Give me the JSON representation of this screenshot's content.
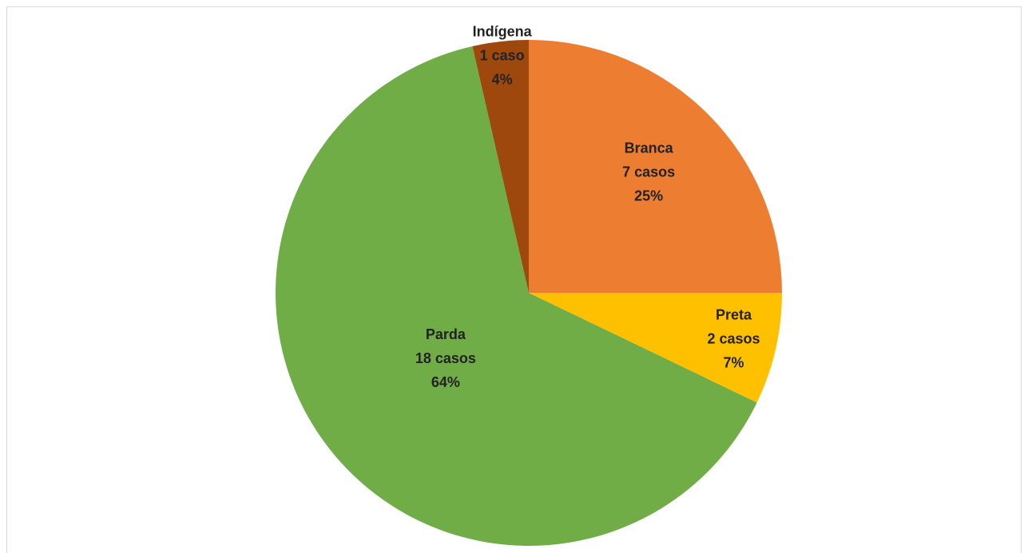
{
  "chart_data": {
    "type": "pie",
    "categories": [
      "Branca",
      "Preta",
      "Parda",
      "Indígena"
    ],
    "values": [
      7,
      2,
      18,
      1
    ],
    "value_labels": [
      "7 casos",
      "2 casos",
      "18 casos",
      "1 caso"
    ],
    "percentages": [
      25,
      7,
      64,
      4
    ],
    "percentage_labels": [
      "25%",
      "7%",
      "64%",
      "4%"
    ],
    "colors": [
      "#ED7D31",
      "#FFC000",
      "#70AD47",
      "#9E480E"
    ]
  }
}
